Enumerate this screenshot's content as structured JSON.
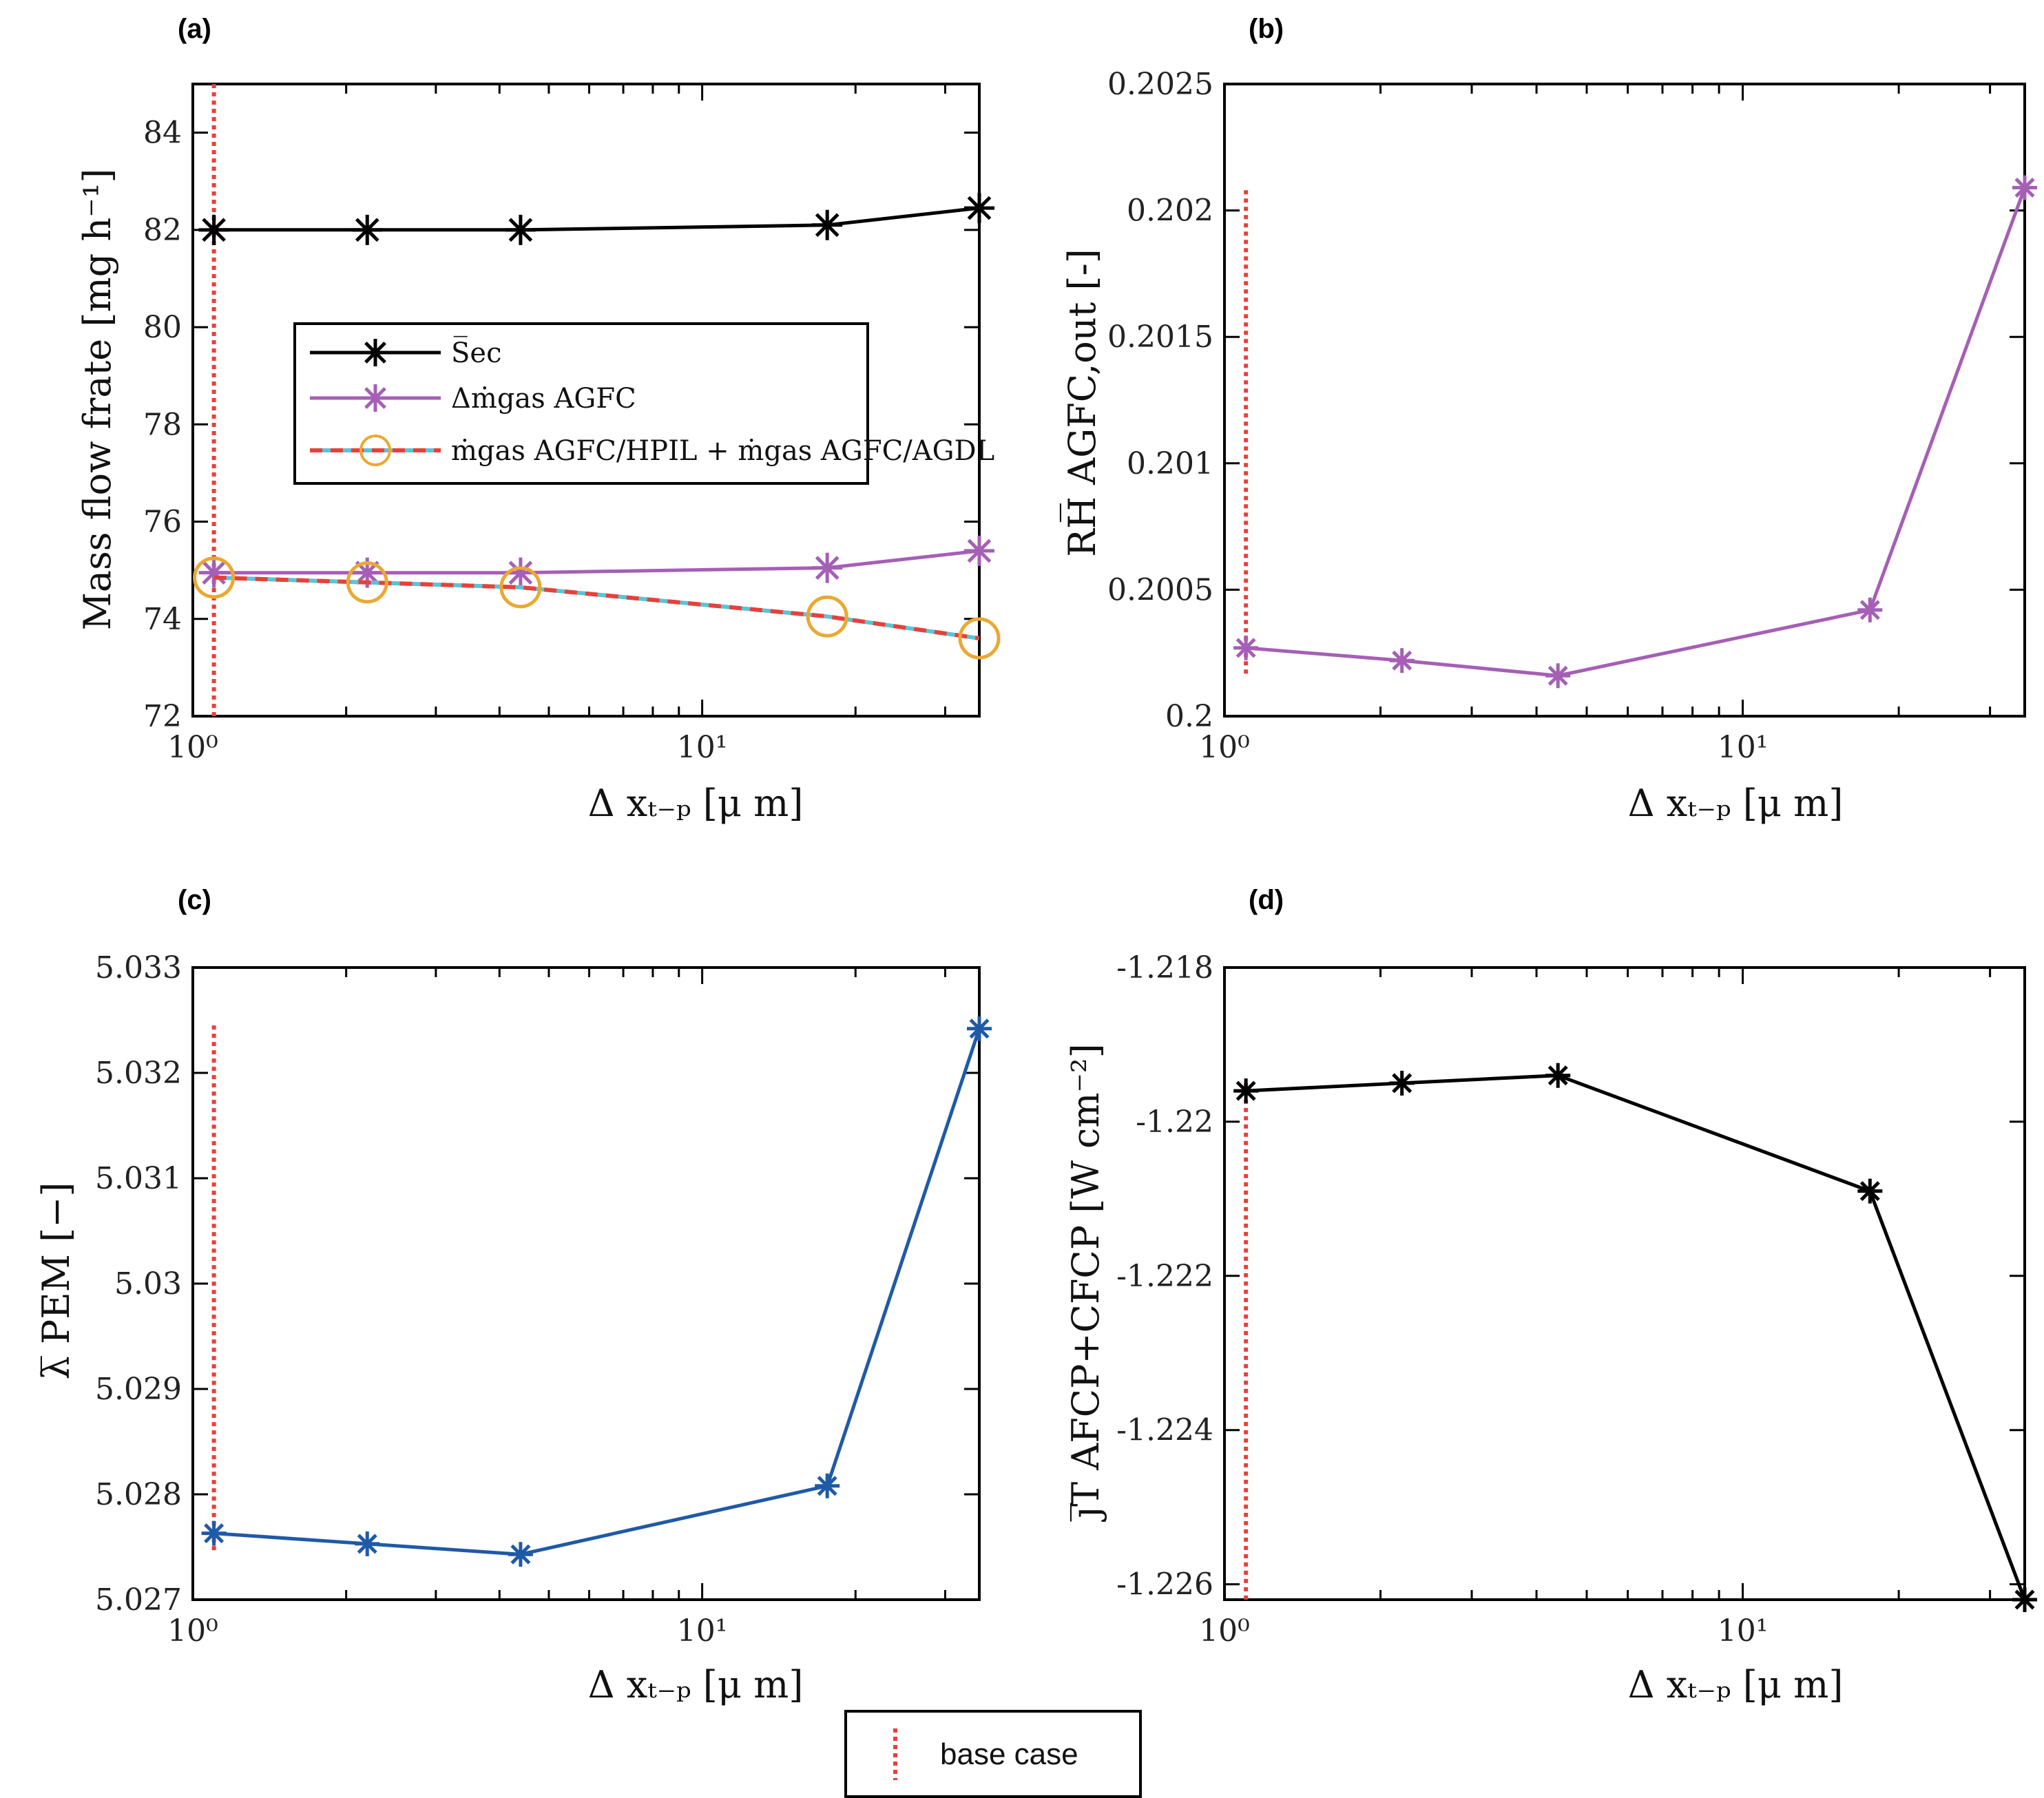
{
  "panels": [
    {
      "label": "(a)",
      "ylabel": "Mass flow frate [mg h⁻¹]",
      "xlabel": "Δ xₜ₋ₚ [μ m]",
      "xticks": [
        "10⁰",
        "10¹"
      ],
      "yticks": [
        "72",
        "74",
        "76",
        "78",
        "80",
        "82",
        "84"
      ],
      "legend": [
        {
          "name": "S̅ec",
          "color": "#000000",
          "marker": "asterisk"
        },
        {
          "name": "Δṁgas AGFC",
          "color": "#a55fb5",
          "marker": "asterisk"
        },
        {
          "name": "ṁgas AGFC/HPIL + ṁgas AGFC/AGDL",
          "color": "#e8403a",
          "marker": "circle"
        }
      ]
    },
    {
      "label": "(b)",
      "ylabel": "RH̅ AGFC,out [-]",
      "xlabel": "Δ xₜ₋ₚ [μ m]",
      "xticks": [
        "10⁰",
        "10¹"
      ],
      "yticks": [
        "0.2",
        "0.2005",
        "0.201",
        "0.2015",
        "0.202",
        "0.2025"
      ]
    },
    {
      "label": "(c)",
      "ylabel": "λ̅ PEM [−]",
      "xlabel": "Δ xₜ₋ₚ [μ m]",
      "xticks": [
        "10⁰",
        "10¹"
      ],
      "yticks": [
        "5.027",
        "5.028",
        "5.029",
        "5.03",
        "5.031",
        "5.032",
        "5.033"
      ]
    },
    {
      "label": "(d)",
      "ylabel": "j̅T AFCP+CFCP [W cm⁻²]",
      "xlabel": "Δ xₜ₋ₚ [μ m]",
      "xticks": [
        "10⁰",
        "10¹"
      ],
      "yticks": [
        "-1.226",
        "-1.224",
        "-1.222",
        "-1.22",
        "-1.218"
      ]
    }
  ],
  "base_legend": {
    "label": "base case",
    "color": "#e8403a"
  },
  "chart_data": [
    {
      "type": "line",
      "title": "",
      "xscale": "log",
      "xlim": [
        1,
        35
      ],
      "ylim": [
        72,
        85
      ],
      "x": [
        1.1,
        2.2,
        4.4,
        17.6,
        35
      ],
      "series": [
        {
          "name": "S̅ec",
          "values": [
            82.0,
            82.0,
            82.0,
            82.1,
            82.45
          ],
          "color": "#000000",
          "marker": "asterisk"
        },
        {
          "name": "Δṁgas AGFC",
          "values": [
            74.95,
            74.95,
            74.95,
            75.05,
            75.4
          ],
          "color": "#a55fb5",
          "marker": "asterisk"
        },
        {
          "name": "ṁgas AGFC/HPIL + ṁgas AGFC/AGDL",
          "values": [
            74.85,
            74.75,
            74.65,
            74.05,
            73.6
          ],
          "color": "#e8403a",
          "line2": "#5bc4d4",
          "marker": "circle",
          "marker_color": "#eaa832",
          "dashed": true
        }
      ],
      "base_case_x": 1.1,
      "base_case_range": [
        72,
        85
      ],
      "legend_position": "center-left"
    },
    {
      "type": "line",
      "title": "",
      "xscale": "log",
      "xlim": [
        1,
        35
      ],
      "ylim": [
        0.2,
        0.2025
      ],
      "x": [
        1.1,
        2.2,
        4.4,
        17.6,
        35
      ],
      "series": [
        {
          "values": [
            0.20027,
            0.20022,
            0.20016,
            0.20042,
            0.20209
          ],
          "color": "#a55fb5",
          "marker": "asterisk"
        }
      ],
      "base_case_x": 1.1,
      "base_case_range": [
        0.20016,
        0.20208
      ]
    },
    {
      "type": "line",
      "title": "",
      "xscale": "log",
      "xlim": [
        1,
        35
      ],
      "ylim": [
        5.027,
        5.033
      ],
      "x": [
        1.1,
        2.2,
        4.4,
        17.6,
        35
      ],
      "series": [
        {
          "values": [
            5.02763,
            5.02753,
            5.02743,
            5.02808,
            5.03242
          ],
          "color": "#1f5aa6",
          "marker": "asterisk"
        }
      ],
      "base_case_x": 1.1,
      "base_case_range": [
        5.02745,
        5.03245
      ]
    },
    {
      "type": "line",
      "title": "",
      "xscale": "log",
      "xlim": [
        1,
        35
      ],
      "ylim": [
        -1.2262,
        -1.218
      ],
      "x": [
        1.1,
        2.2,
        4.4,
        17.6,
        35
      ],
      "series": [
        {
          "values": [
            -1.2196,
            -1.2195,
            -1.2194,
            -1.2209,
            -1.2262
          ],
          "color": "#000000",
          "marker": "asterisk"
        }
      ],
      "base_case_x": 1.1,
      "base_case_range": [
        -1.2262,
        -1.2195
      ]
    }
  ]
}
